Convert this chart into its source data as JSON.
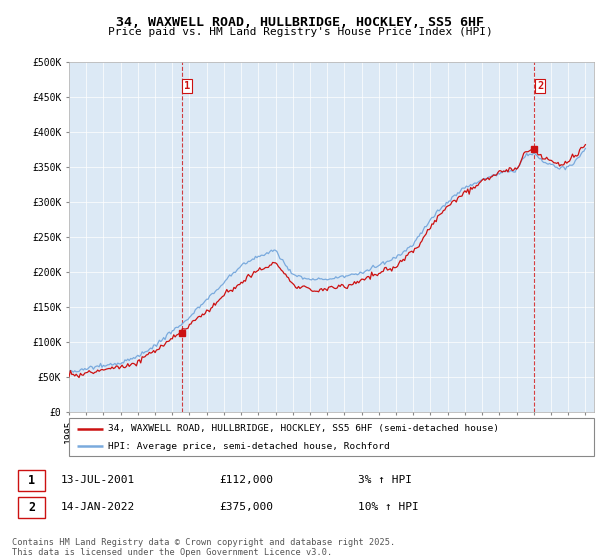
{
  "title": "34, WAXWELL ROAD, HULLBRIDGE, HOCKLEY, SS5 6HF",
  "subtitle": "Price paid vs. HM Land Registry's House Price Index (HPI)",
  "ylim": [
    0,
    500000
  ],
  "yticks": [
    0,
    50000,
    100000,
    150000,
    200000,
    250000,
    300000,
    350000,
    400000,
    450000,
    500000
  ],
  "ytick_labels": [
    "£0",
    "£50K",
    "£100K",
    "£150K",
    "£200K",
    "£250K",
    "£300K",
    "£350K",
    "£400K",
    "£450K",
    "£500K"
  ],
  "background_color": "#ffffff",
  "plot_bg_color": "#dce9f5",
  "grid_color": "#ffffff",
  "line1_color": "#cc1111",
  "line2_color": "#7aaadd",
  "transaction1_price": 112000,
  "transaction1_year": 2001.54,
  "transaction2_price": 375000,
  "transaction2_year": 2022.04,
  "transaction1": {
    "label": "1",
    "date": "13-JUL-2001",
    "price": 112000,
    "hpi_change": "3% ↑ HPI"
  },
  "transaction2": {
    "label": "2",
    "date": "14-JAN-2022",
    "price": 375000,
    "hpi_change": "10% ↑ HPI"
  },
  "legend_line1": "34, WAXWELL ROAD, HULLBRIDGE, HOCKLEY, SS5 6HF (semi-detached house)",
  "legend_line2": "HPI: Average price, semi-detached house, Rochford",
  "footnote": "Contains HM Land Registry data © Crown copyright and database right 2025.\nThis data is licensed under the Open Government Licence v3.0.",
  "start_year": 1995,
  "end_year": 2025
}
